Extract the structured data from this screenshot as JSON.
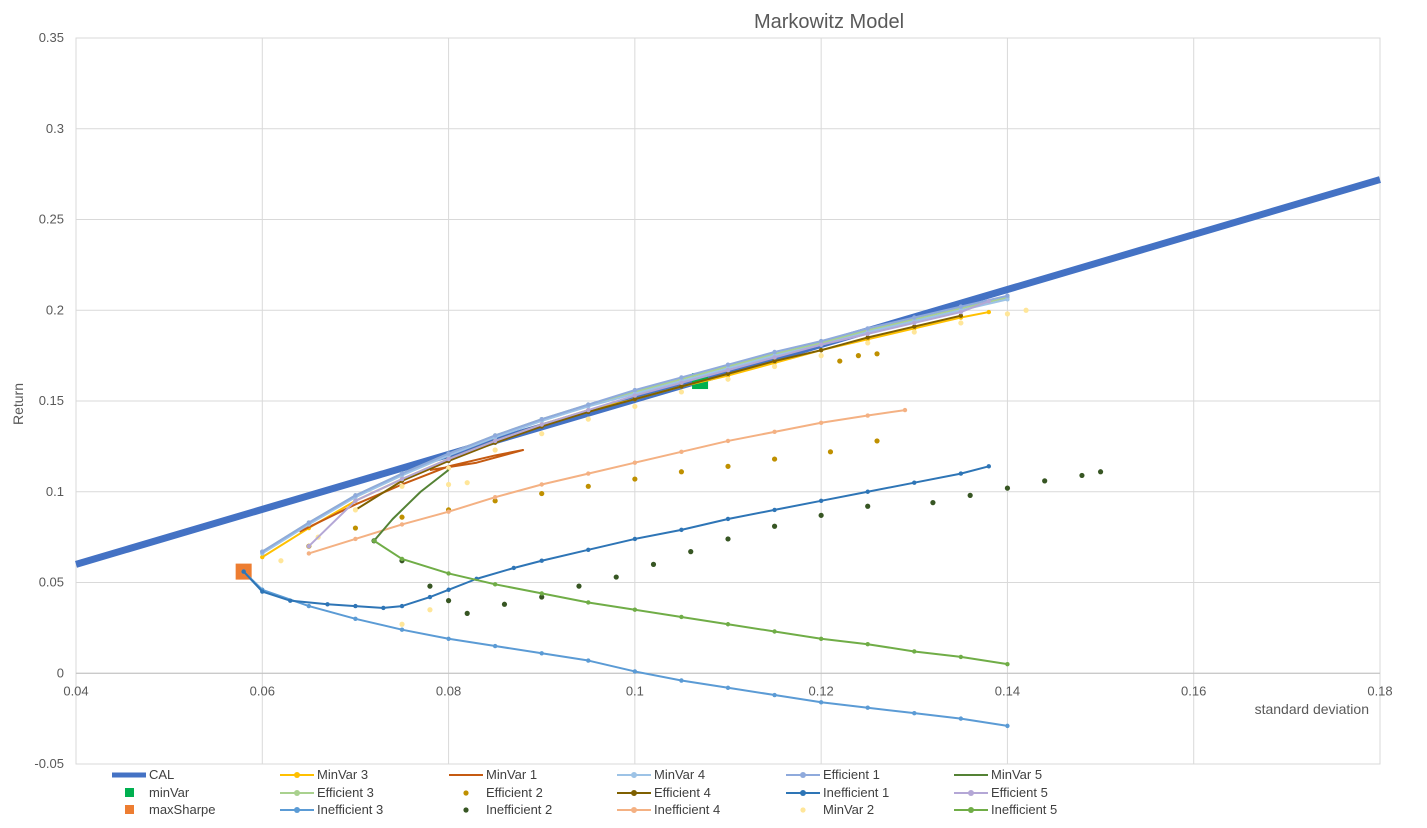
{
  "chart_data": {
    "type": "scatter",
    "title": "Markowitz Model",
    "xlabel": "standard deviation",
    "ylabel": "Return",
    "xlim": [
      0.04,
      0.18
    ],
    "ylim": [
      -0.05,
      0.35
    ],
    "x_ticks": [
      "0.04",
      "0.06",
      "0.08",
      "0.1",
      "0.12",
      "0.14",
      "0.16",
      "0.18"
    ],
    "y_ticks": [
      "-0.05",
      "0",
      "0.05",
      "0.1",
      "0.15",
      "0.2",
      "0.25",
      "0.3",
      "0.35"
    ],
    "grid": true,
    "legend_position": "bottom",
    "series": [
      {
        "name": "CAL",
        "style": "line",
        "color": "#4472C4",
        "x": [
          0.04,
          0.18
        ],
        "y": [
          0.06,
          0.272
        ]
      },
      {
        "name": "minVar",
        "style": "square",
        "color": "#00B050",
        "x": [
          0.107
        ],
        "y": [
          0.161
        ]
      },
      {
        "name": "maxSharpe",
        "style": "square",
        "color": "#ED7D31",
        "x": [
          0.058
        ],
        "y": [
          0.056
        ]
      },
      {
        "name": "MinVar 3",
        "style": "line-dot",
        "color": "#FFC000",
        "x": [
          0.06,
          0.065,
          0.07,
          0.075,
          0.08,
          0.085,
          0.09,
          0.095,
          0.1,
          0.105,
          0.11,
          0.115,
          0.12,
          0.125,
          0.13,
          0.135,
          0.138
        ],
        "y": [
          0.064,
          0.08,
          0.095,
          0.107,
          0.118,
          0.128,
          0.137,
          0.145,
          0.151,
          0.158,
          0.164,
          0.171,
          0.178,
          0.184,
          0.19,
          0.196,
          0.199
        ]
      },
      {
        "name": "Efficient 3",
        "style": "line-dot",
        "color": "#A9D18E",
        "x": [
          0.06,
          0.065,
          0.07,
          0.075,
          0.08,
          0.085,
          0.09,
          0.095,
          0.1,
          0.105,
          0.11,
          0.115,
          0.12,
          0.125,
          0.13,
          0.135,
          0.14
        ],
        "y": [
          0.067,
          0.083,
          0.098,
          0.11,
          0.121,
          0.131,
          0.14,
          0.148,
          0.155,
          0.162,
          0.169,
          0.176,
          0.182,
          0.189,
          0.195,
          0.201,
          0.207
        ]
      },
      {
        "name": "Inefficient 3",
        "style": "line-dot",
        "color": "#5B9BD5",
        "x": [
          0.058,
          0.06,
          0.065,
          0.07,
          0.075,
          0.08,
          0.085,
          0.09,
          0.095,
          0.1,
          0.105,
          0.11,
          0.115,
          0.12,
          0.125,
          0.13,
          0.135,
          0.14
        ],
        "y": [
          0.056,
          0.046,
          0.037,
          0.03,
          0.024,
          0.019,
          0.015,
          0.011,
          0.007,
          0.001,
          -0.004,
          -0.008,
          -0.012,
          -0.016,
          -0.019,
          -0.022,
          -0.025,
          -0.029
        ]
      },
      {
        "name": "MinVar 1",
        "style": "line",
        "color": "#C55A11",
        "x": [
          0.064,
          0.07,
          0.075,
          0.08,
          0.085,
          0.088,
          0.083,
          0.078
        ],
        "y": [
          0.078,
          0.093,
          0.104,
          0.114,
          0.12,
          0.123,
          0.116,
          0.112
        ]
      },
      {
        "name": "Efficient 2",
        "style": "dots",
        "color": "#BF9000",
        "x": [
          0.065,
          0.07,
          0.075,
          0.08,
          0.085,
          0.09,
          0.095,
          0.1,
          0.105,
          0.11,
          0.115,
          0.121,
          0.126,
          0.122,
          0.124,
          0.126
        ],
        "y": [
          0.07,
          0.08,
          0.086,
          0.09,
          0.095,
          0.099,
          0.103,
          0.107,
          0.111,
          0.114,
          0.118,
          0.122,
          0.128,
          0.172,
          0.175,
          0.176
        ]
      },
      {
        "name": "Inefficient 2",
        "style": "dots",
        "color": "#375623",
        "x": [
          0.072,
          0.075,
          0.078,
          0.08,
          0.082,
          0.086,
          0.09,
          0.094,
          0.098,
          0.102,
          0.106,
          0.11,
          0.115,
          0.12,
          0.125,
          0.132,
          0.136,
          0.14,
          0.144,
          0.148,
          0.15
        ],
        "y": [
          0.073,
          0.062,
          0.048,
          0.04,
          0.033,
          0.038,
          0.042,
          0.048,
          0.053,
          0.06,
          0.067,
          0.074,
          0.081,
          0.087,
          0.092,
          0.094,
          0.098,
          0.102,
          0.106,
          0.109,
          0.111
        ]
      },
      {
        "name": "MinVar 4",
        "style": "line-dot",
        "color": "#9DC3E6",
        "x": [
          0.06,
          0.065,
          0.07,
          0.075,
          0.08,
          0.085,
          0.09,
          0.095,
          0.1,
          0.105,
          0.11,
          0.115,
          0.12,
          0.125,
          0.13,
          0.135,
          0.14
        ],
        "y": [
          0.066,
          0.082,
          0.097,
          0.109,
          0.12,
          0.13,
          0.139,
          0.147,
          0.154,
          0.161,
          0.168,
          0.175,
          0.181,
          0.188,
          0.194,
          0.2,
          0.206
        ]
      },
      {
        "name": "Efficient 4",
        "style": "line-dot",
        "color": "#7F6000",
        "x": [
          0.07,
          0.075,
          0.08,
          0.085,
          0.09,
          0.095,
          0.1,
          0.105,
          0.11,
          0.115,
          0.12,
          0.125,
          0.13,
          0.135
        ],
        "y": [
          0.09,
          0.106,
          0.117,
          0.127,
          0.136,
          0.144,
          0.151,
          0.158,
          0.165,
          0.172,
          0.178,
          0.185,
          0.191,
          0.197
        ]
      },
      {
        "name": "Inefficient 4",
        "style": "line-dot",
        "color": "#F4B183",
        "x": [
          0.065,
          0.07,
          0.075,
          0.08,
          0.085,
          0.09,
          0.095,
          0.1,
          0.105,
          0.11,
          0.115,
          0.12,
          0.125,
          0.129
        ],
        "y": [
          0.066,
          0.074,
          0.082,
          0.089,
          0.097,
          0.104,
          0.11,
          0.116,
          0.122,
          0.128,
          0.133,
          0.138,
          0.142,
          0.145
        ]
      },
      {
        "name": "Efficient 1",
        "style": "line-dot",
        "color": "#8FAADC",
        "x": [
          0.06,
          0.065,
          0.07,
          0.075,
          0.08,
          0.085,
          0.09,
          0.095,
          0.1,
          0.105,
          0.11,
          0.115,
          0.12,
          0.125,
          0.13,
          0.135,
          0.14
        ],
        "y": [
          0.067,
          0.083,
          0.098,
          0.11,
          0.121,
          0.131,
          0.14,
          0.148,
          0.156,
          0.163,
          0.17,
          0.177,
          0.183,
          0.19,
          0.196,
          0.202,
          0.208
        ]
      },
      {
        "name": "Inefficient 1",
        "style": "line-dot",
        "color": "#2E75B6",
        "x": [
          0.058,
          0.06,
          0.063,
          0.067,
          0.07,
          0.073,
          0.075,
          0.078,
          0.08,
          0.083,
          0.087,
          0.09,
          0.095,
          0.1,
          0.105,
          0.11,
          0.115,
          0.12,
          0.125,
          0.13,
          0.135,
          0.138
        ],
        "y": [
          0.056,
          0.045,
          0.04,
          0.038,
          0.037,
          0.036,
          0.037,
          0.042,
          0.046,
          0.052,
          0.058,
          0.062,
          0.068,
          0.074,
          0.079,
          0.085,
          0.09,
          0.095,
          0.1,
          0.105,
          0.11,
          0.114
        ]
      },
      {
        "name": "MinVar 2",
        "style": "dots",
        "color": "#FFE699",
        "x": [
          0.062,
          0.066,
          0.07,
          0.075,
          0.08,
          0.085,
          0.09,
          0.095,
          0.1,
          0.105,
          0.11,
          0.115,
          0.12,
          0.125,
          0.13,
          0.135,
          0.14,
          0.142,
          0.08,
          0.075,
          0.078,
          0.082
        ],
        "y": [
          0.062,
          0.075,
          0.09,
          0.103,
          0.113,
          0.123,
          0.132,
          0.14,
          0.147,
          0.155,
          0.162,
          0.169,
          0.175,
          0.182,
          0.188,
          0.193,
          0.198,
          0.2,
          0.104,
          0.027,
          0.035,
          0.105
        ]
      },
      {
        "name": "MinVar 5",
        "style": "line",
        "color": "#548235",
        "x": [
          0.072,
          0.074,
          0.076,
          0.077,
          0.078,
          0.079,
          0.08
        ],
        "y": [
          0.073,
          0.085,
          0.095,
          0.1,
          0.104,
          0.108,
          0.112
        ]
      },
      {
        "name": "Efficient 5",
        "style": "line-dot",
        "color": "#B4A7D6",
        "x": [
          0.065,
          0.07,
          0.075,
          0.08,
          0.085,
          0.09,
          0.095,
          0.1,
          0.105,
          0.11,
          0.115,
          0.12,
          0.125,
          0.13,
          0.135,
          0.138
        ],
        "y": [
          0.07,
          0.095,
          0.107,
          0.118,
          0.128,
          0.137,
          0.145,
          0.153,
          0.16,
          0.167,
          0.174,
          0.181,
          0.187,
          0.193,
          0.199,
          0.205
        ]
      },
      {
        "name": "Inefficient 5",
        "style": "line-dot",
        "color": "#70AD47",
        "x": [
          0.072,
          0.075,
          0.08,
          0.085,
          0.09,
          0.095,
          0.1,
          0.105,
          0.11,
          0.115,
          0.12,
          0.125,
          0.13,
          0.135,
          0.14
        ],
        "y": [
          0.073,
          0.063,
          0.055,
          0.049,
          0.044,
          0.039,
          0.035,
          0.031,
          0.027,
          0.023,
          0.019,
          0.016,
          0.012,
          0.009,
          0.005
        ]
      }
    ]
  }
}
